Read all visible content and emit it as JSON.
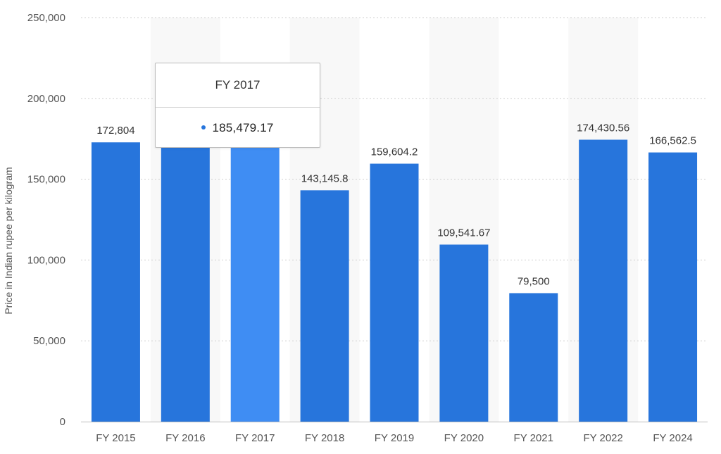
{
  "chart_data": {
    "type": "bar",
    "categories": [
      "FY 2015",
      "FY 2016",
      "FY 2017",
      "FY 2018",
      "FY 2019",
      "FY 2020",
      "FY 2021",
      "FY 2022",
      "FY 2024"
    ],
    "values": [
      172804,
      185479.17,
      185479.17,
      143145.8,
      159604.2,
      109541.67,
      79500,
      174430.56,
      166562.5
    ],
    "data_labels": [
      "172,804",
      "",
      "",
      "143,145.8",
      "159,604.2",
      "109,541.67",
      "79,500",
      "174,430.56",
      "166,562.5"
    ],
    "ylabel": "Price in Indian rupee per kilogram",
    "xlabel": "",
    "title": "",
    "ylim": [
      0,
      250000
    ],
    "yticks": [
      0,
      50000,
      100000,
      150000,
      200000,
      250000
    ],
    "ytick_labels": [
      "0",
      "50,000",
      "100,000",
      "150,000",
      "200,000",
      "250,000"
    ],
    "grid": true,
    "highlighted_category": "FY 2017"
  },
  "tooltip": {
    "title": "FY 2017",
    "value": "185,479.17"
  },
  "colors": {
    "bar": "#2775dc",
    "bar_highlight": "#3f8df3",
    "tooltip_dot": "#2775dc"
  }
}
